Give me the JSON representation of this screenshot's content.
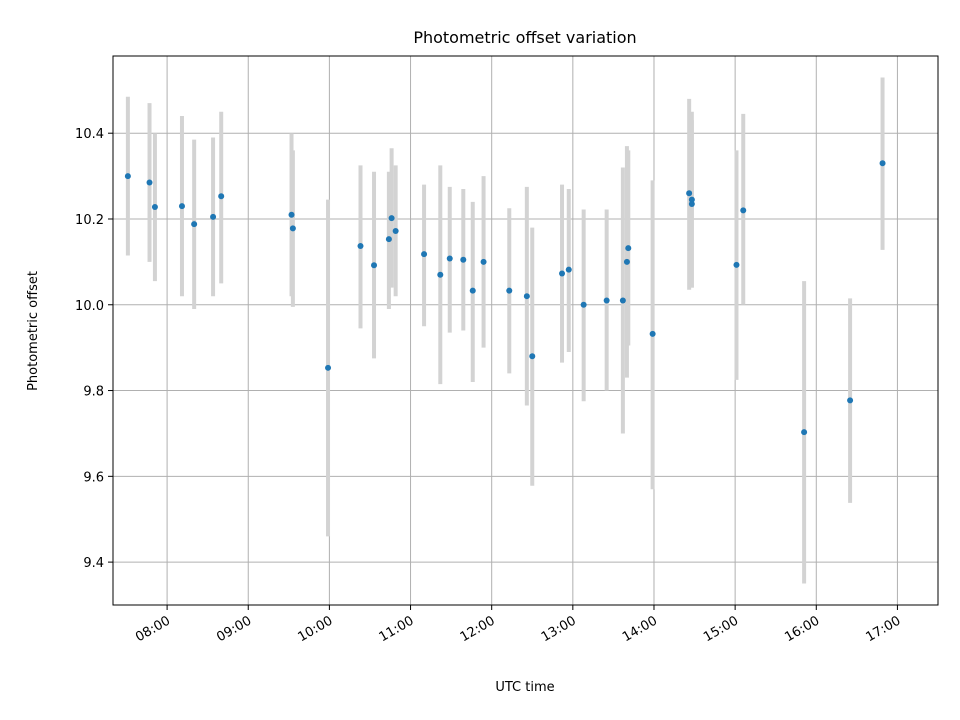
{
  "chart_data": {
    "type": "scatter",
    "title": "Photometric offset variation",
    "xlabel": "UTC time",
    "ylabel": "Photometric offset",
    "xlim": [
      "07:20",
      "17:30"
    ],
    "ylim": [
      9.3,
      10.58
    ],
    "x_ticks": [
      "08:00",
      "09:00",
      "10:00",
      "11:00",
      "12:00",
      "13:00",
      "14:00",
      "15:00",
      "16:00",
      "17:00"
    ],
    "y_ticks": [
      "9.4",
      "9.6",
      "9.8",
      "10.0",
      "10.2",
      "10.4"
    ],
    "grid": true,
    "point_color": "#1f77b4",
    "errorbar_color": "#d3d3d3",
    "points": [
      {
        "x": "07:31",
        "y": 10.3,
        "err_low": 10.115,
        "err_high": 10.485
      },
      {
        "x": "07:47",
        "y": 10.285,
        "err_low": 10.1,
        "err_high": 10.47
      },
      {
        "x": "07:51",
        "y": 10.228,
        "err_low": 10.055,
        "err_high": 10.4
      },
      {
        "x": "08:11",
        "y": 10.23,
        "err_low": 10.02,
        "err_high": 10.44
      },
      {
        "x": "08:20",
        "y": 10.188,
        "err_low": 9.99,
        "err_high": 10.385
      },
      {
        "x": "08:34",
        "y": 10.205,
        "err_low": 10.02,
        "err_high": 10.39
      },
      {
        "x": "08:40",
        "y": 10.253,
        "err_low": 10.05,
        "err_high": 10.45
      },
      {
        "x": "09:32",
        "y": 10.21,
        "err_low": 10.02,
        "err_high": 10.4
      },
      {
        "x": "09:33",
        "y": 10.178,
        "err_low": 9.995,
        "err_high": 10.36
      },
      {
        "x": "09:59",
        "y": 9.853,
        "err_low": 9.46,
        "err_high": 10.245
      },
      {
        "x": "10:23",
        "y": 10.137,
        "err_low": 9.945,
        "err_high": 10.325
      },
      {
        "x": "10:33",
        "y": 10.092,
        "err_low": 9.875,
        "err_high": 10.31
      },
      {
        "x": "10:44",
        "y": 10.153,
        "err_low": 9.99,
        "err_high": 10.31
      },
      {
        "x": "10:46",
        "y": 10.202,
        "err_low": 10.04,
        "err_high": 10.365
      },
      {
        "x": "10:49",
        "y": 10.172,
        "err_low": 10.02,
        "err_high": 10.325
      },
      {
        "x": "11:10",
        "y": 10.118,
        "err_low": 9.95,
        "err_high": 10.28
      },
      {
        "x": "11:22",
        "y": 10.07,
        "err_low": 9.815,
        "err_high": 10.325
      },
      {
        "x": "11:29",
        "y": 10.108,
        "err_low": 9.935,
        "err_high": 10.275
      },
      {
        "x": "11:39",
        "y": 10.105,
        "err_low": 9.94,
        "err_high": 10.27
      },
      {
        "x": "11:46",
        "y": 10.033,
        "err_low": 9.82,
        "err_high": 10.24
      },
      {
        "x": "11:54",
        "y": 10.1,
        "err_low": 9.9,
        "err_high": 10.3
      },
      {
        "x": "12:13",
        "y": 10.033,
        "err_low": 9.84,
        "err_high": 10.225
      },
      {
        "x": "12:26",
        "y": 10.02,
        "err_low": 9.765,
        "err_high": 10.275
      },
      {
        "x": "12:30",
        "y": 9.88,
        "err_low": 9.578,
        "err_high": 10.18
      },
      {
        "x": "12:52",
        "y": 10.073,
        "err_low": 9.865,
        "err_high": 10.28
      },
      {
        "x": "12:57",
        "y": 10.082,
        "err_low": 9.89,
        "err_high": 10.27
      },
      {
        "x": "13:08",
        "y": 10.0,
        "err_low": 9.775,
        "err_high": 10.222
      },
      {
        "x": "13:25",
        "y": 10.01,
        "err_low": 9.8,
        "err_high": 10.222
      },
      {
        "x": "13:37",
        "y": 10.01,
        "err_low": 9.7,
        "err_high": 10.32
      },
      {
        "x": "13:40",
        "y": 10.1,
        "err_low": 9.83,
        "err_high": 10.37
      },
      {
        "x": "13:41",
        "y": 10.132,
        "err_low": 9.905,
        "err_high": 10.36
      },
      {
        "x": "13:59",
        "y": 9.932,
        "err_low": 9.57,
        "err_high": 10.29
      },
      {
        "x": "14:26",
        "y": 10.26,
        "err_low": 10.035,
        "err_high": 10.48
      },
      {
        "x": "14:28",
        "y": 10.245,
        "err_low": 10.04,
        "err_high": 10.45
      },
      {
        "x": "14:28",
        "y": 10.235,
        "err_low": 10.04,
        "err_high": 10.43
      },
      {
        "x": "15:01",
        "y": 10.093,
        "err_low": 9.825,
        "err_high": 10.36
      },
      {
        "x": "15:06",
        "y": 10.22,
        "err_low": 10.0,
        "err_high": 10.445
      },
      {
        "x": "15:51",
        "y": 9.703,
        "err_low": 9.35,
        "err_high": 10.055
      },
      {
        "x": "16:25",
        "y": 9.777,
        "err_low": 9.538,
        "err_high": 10.015
      },
      {
        "x": "16:49",
        "y": 10.33,
        "err_low": 10.128,
        "err_high": 10.53
      }
    ]
  }
}
